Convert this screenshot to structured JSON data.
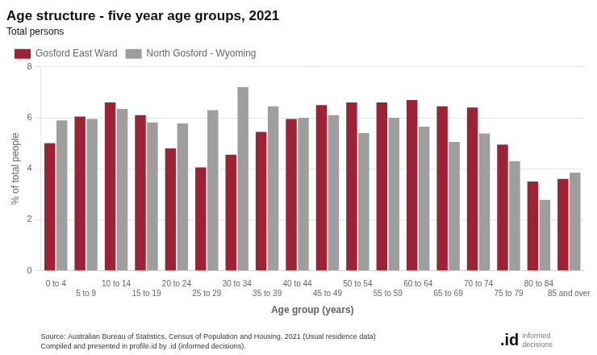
{
  "chart_data": {
    "type": "bar",
    "title": "Age structure - five year age groups, 2021",
    "subtitle": "Total persons",
    "categories": [
      "0 to 4",
      "5 to 9",
      "10 to 14",
      "15 to 19",
      "20 to 24",
      "25 to 29",
      "30 to 34",
      "35 to 39",
      "40 to 44",
      "45 to 49",
      "50 to 54",
      "55 to 59",
      "60 to 64",
      "65 to 69",
      "70 to 74",
      "75 to 79",
      "80 to 84",
      "85 and over"
    ],
    "series": [
      {
        "name": "Gosford East Ward",
        "color": "#9b2335",
        "values": [
          5.0,
          6.05,
          6.6,
          6.1,
          4.8,
          4.05,
          4.55,
          5.45,
          5.95,
          6.5,
          6.6,
          6.6,
          6.7,
          6.45,
          6.4,
          4.95,
          3.5,
          3.6
        ]
      },
      {
        "name": "North Gosford - Wyoming",
        "color": "#9e9e9e",
        "values": [
          5.9,
          5.95,
          6.35,
          5.82,
          5.78,
          6.3,
          7.2,
          6.45,
          6.0,
          6.1,
          5.4,
          6.0,
          5.65,
          5.05,
          5.38,
          4.3,
          2.78,
          3.85
        ]
      }
    ],
    "xlabel": "Age group (years)",
    "ylabel": "% of total people",
    "ylim": [
      0,
      8
    ],
    "yticks": [
      0,
      2,
      4,
      6,
      8
    ],
    "grid": true,
    "legend": "top",
    "annotations": [
      "Source: Australian Bureau of Statistics, Census of Population and Housing, 2021 (Usual residence data)",
      "Compiled and presented in profile.id by .id (informed decisions).",
      ".id",
      "informed\ndecisions"
    ]
  }
}
